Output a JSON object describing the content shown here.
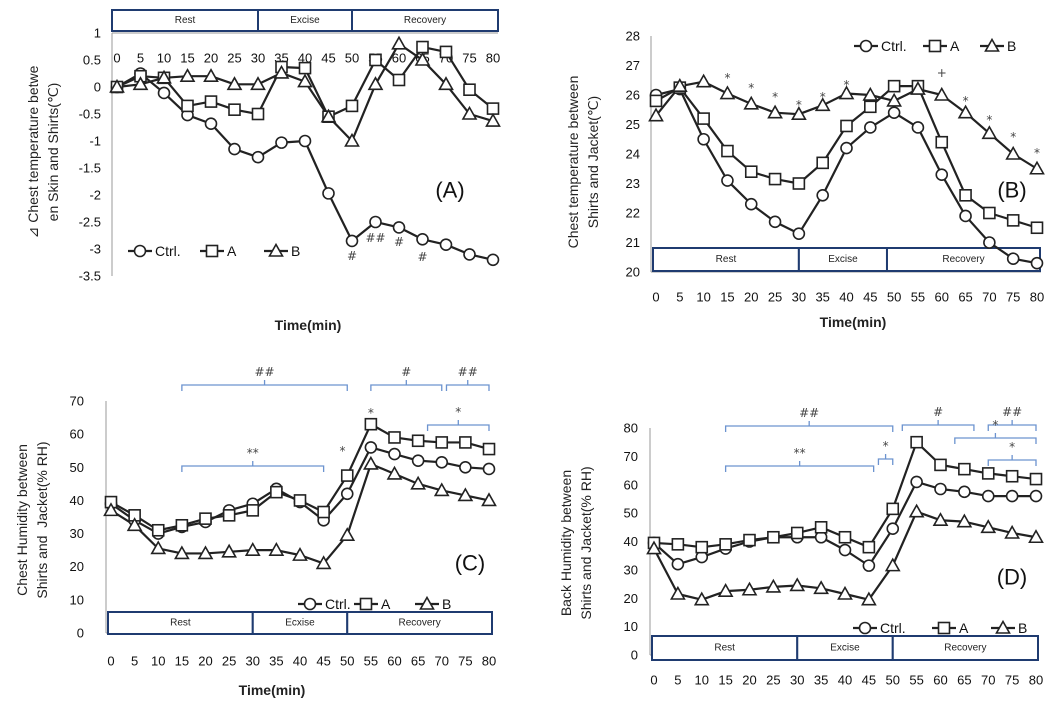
{
  "chart_data": [
    {
      "panel": "(A)",
      "type": "line",
      "x": [
        0,
        5,
        10,
        15,
        20,
        25,
        30,
        35,
        40,
        45,
        50,
        55,
        60,
        65,
        70,
        75,
        80
      ],
      "xlabel": "Time(min)",
      "ylabel": [
        "⊿ Chest temperature betwe",
        "en Skin and Shirts(℃)"
      ],
      "ylim": [
        -3.5,
        1
      ],
      "y_ticks": [
        1,
        0.5,
        0,
        -0.5,
        -1,
        -1.5,
        -2,
        -2.5,
        -3,
        -3.5
      ],
      "legend": "bottom-left",
      "phases": [
        {
          "label": "Rest",
          "start": 0,
          "end": 30
        },
        {
          "label": "Excise",
          "start": 30,
          "end": 50
        },
        {
          "label": "Recovery",
          "start": 50,
          "end": 80
        }
      ],
      "series": [
        {
          "name": "Ctrl.",
          "marker": "circle",
          "values": [
            0,
            0.25,
            -0.11,
            -0.52,
            -0.68,
            -1.15,
            -1.3,
            -1.03,
            -1.0,
            -1.97,
            -2.85,
            -2.5,
            -2.6,
            -2.82,
            -2.92,
            -3.1,
            -3.2
          ]
        },
        {
          "name": "A",
          "marker": "square",
          "values": [
            0,
            0.2,
            0.17,
            -0.35,
            -0.27,
            -0.42,
            -0.5,
            0.37,
            0.35,
            -0.55,
            -0.35,
            0.5,
            0.13,
            0.74,
            0.65,
            -0.05,
            -0.4
          ]
        },
        {
          "name": "B",
          "marker": "triangle",
          "values": [
            0,
            0.05,
            0.17,
            0.2,
            0.2,
            0.05,
            0.05,
            0.26,
            0.1,
            -0.55,
            -1.0,
            0.05,
            0.8,
            0.5,
            0.05,
            -0.5,
            -0.63
          ]
        }
      ],
      "annotations": [
        {
          "text": "#",
          "x": 50
        },
        {
          "text": "##",
          "x": 55
        },
        {
          "text": "#",
          "x": 60
        },
        {
          "text": "#",
          "x": 65
        }
      ]
    },
    {
      "panel": "(B)",
      "type": "line",
      "x": [
        0,
        5,
        10,
        15,
        20,
        25,
        30,
        35,
        40,
        45,
        50,
        55,
        60,
        65,
        70,
        75,
        80
      ],
      "xlabel": "Time(min)",
      "ylabel": [
        "Chest temperature between",
        "Shirts and Jacket(℃)"
      ],
      "ylim": [
        20,
        28
      ],
      "y_ticks": [
        28,
        27,
        26,
        25,
        24,
        23,
        22,
        21,
        20
      ],
      "legend": "top",
      "phases": [
        {
          "label": "Rest",
          "start": 0,
          "end": 30
        },
        {
          "label": "Excise",
          "start": 30,
          "end": 48.5
        },
        {
          "label": "Recovery",
          "start": 48.5,
          "end": 80
        }
      ],
      "series": [
        {
          "name": "Ctrl.",
          "marker": "circle",
          "values": [
            26.0,
            26.2,
            24.5,
            23.1,
            22.3,
            21.7,
            21.3,
            22.6,
            24.2,
            24.9,
            25.4,
            24.9,
            23.3,
            21.9,
            21.0,
            20.45,
            20.3
          ]
        },
        {
          "name": "A",
          "marker": "square",
          "values": [
            25.8,
            26.25,
            25.2,
            24.1,
            23.4,
            23.15,
            23.0,
            23.7,
            24.95,
            25.6,
            26.3,
            26.3,
            24.4,
            22.6,
            22.0,
            21.75,
            21.5
          ]
        },
        {
          "name": "B",
          "marker": "triangle",
          "values": [
            25.3,
            26.3,
            26.45,
            26.05,
            25.7,
            25.4,
            25.35,
            25.65,
            26.05,
            26.0,
            25.8,
            26.2,
            26.0,
            25.4,
            24.7,
            24.0,
            23.5
          ]
        }
      ],
      "annotations": [
        {
          "text": "*",
          "x": 15
        },
        {
          "text": "*",
          "x": 20
        },
        {
          "text": "*",
          "x": 25
        },
        {
          "text": "*",
          "x": 30
        },
        {
          "text": "*",
          "x": 35
        },
        {
          "text": "*",
          "x": 40
        },
        {
          "text": "+",
          "x": 60
        },
        {
          "text": "*",
          "x": 65
        },
        {
          "text": "*",
          "x": 70
        },
        {
          "text": "*",
          "x": 75
        },
        {
          "text": "*",
          "x": 80
        }
      ]
    },
    {
      "panel": "(C)",
      "type": "line",
      "x": [
        0,
        5,
        10,
        15,
        20,
        25,
        30,
        35,
        40,
        45,
        50,
        55,
        60,
        65,
        70,
        75,
        80
      ],
      "xlabel": "Time(min)",
      "ylabel": [
        "Chest Humidity between",
        "Shirts and  Jacket(% RH)"
      ],
      "ylim": [
        0,
        70
      ],
      "y_ticks": [
        70,
        60,
        50,
        40,
        30,
        20,
        10,
        0
      ],
      "legend": "bottom-right",
      "phases": [
        {
          "label": "Rest",
          "start": 0,
          "end": 30
        },
        {
          "label": "Ecxise",
          "start": 30,
          "end": 50
        },
        {
          "label": "Recovery",
          "start": 50,
          "end": 80
        }
      ],
      "series": [
        {
          "name": "Ctrl.",
          "marker": "circle",
          "values": [
            39,
            34,
            30,
            32,
            33.5,
            37,
            39,
            43.5,
            39.5,
            34,
            42,
            56,
            54,
            52,
            51.5,
            50,
            49.5
          ]
        },
        {
          "name": "A",
          "marker": "square",
          "values": [
            39.5,
            35.5,
            31,
            32.5,
            34.5,
            35.5,
            37,
            42.5,
            40,
            36.5,
            47.5,
            63,
            59,
            58,
            57.5,
            57.5,
            55.5
          ]
        },
        {
          "name": "B",
          "marker": "triangle",
          "values": [
            37,
            32.5,
            25.5,
            24,
            24,
            24.5,
            25,
            25,
            23.5,
            21,
            29.5,
            51,
            48,
            45,
            43,
            41.5,
            40
          ]
        }
      ],
      "annotations": [
        {
          "text": "##",
          "from": 15,
          "to": 50
        },
        {
          "text": "**",
          "from": 15,
          "to": 45
        },
        {
          "text": "*",
          "x": 49
        },
        {
          "text": "*",
          "x": 55
        },
        {
          "text": "#",
          "from": 55,
          "to": 70
        },
        {
          "text": "##",
          "from": 71,
          "to": 80
        },
        {
          "text": "*",
          "from": 67,
          "to": 80
        }
      ]
    },
    {
      "panel": "(D)",
      "type": "line",
      "x": [
        0,
        5,
        10,
        15,
        20,
        25,
        30,
        35,
        40,
        45,
        50,
        55,
        60,
        65,
        70,
        75,
        80
      ],
      "ylabel": [
        "Back Humidity between",
        "Shirts and Jacket(% RH)"
      ],
      "ylim": [
        0,
        80
      ],
      "y_ticks": [
        80,
        70,
        60,
        50,
        40,
        30,
        20,
        10,
        0
      ],
      "legend": "bottom-right",
      "phases": [
        {
          "label": "Rest",
          "start": 0,
          "end": 30
        },
        {
          "label": "Excise",
          "start": 30,
          "end": 50
        },
        {
          "label": "Recovery",
          "start": 50,
          "end": 80
        }
      ],
      "series": [
        {
          "name": "Ctrl.",
          "marker": "circle",
          "values": [
            39.5,
            32,
            34.5,
            37.5,
            40,
            41.5,
            41.5,
            41.5,
            37,
            31.5,
            44.5,
            61,
            58.5,
            57.5,
            56,
            56,
            56
          ]
        },
        {
          "name": "A",
          "marker": "square",
          "values": [
            39.5,
            39,
            38,
            39,
            40.5,
            41.5,
            43,
            45,
            41.5,
            38,
            51.5,
            75,
            67,
            65.5,
            64,
            63,
            62
          ]
        },
        {
          "name": "B",
          "marker": "triangle",
          "values": [
            37.5,
            21.5,
            19.5,
            22.5,
            23,
            24,
            24.5,
            23.5,
            21.5,
            19.5,
            31.5,
            50.5,
            47.5,
            47,
            45,
            43,
            41.5
          ]
        }
      ],
      "annotations": [
        {
          "text": "##",
          "from": 15,
          "to": 50
        },
        {
          "text": "**",
          "from": 15,
          "to": 46
        },
        {
          "text": "*",
          "from": 47,
          "to": 50
        },
        {
          "text": "#",
          "from": 52,
          "to": 67
        },
        {
          "text": "##",
          "from": 70,
          "to": 80
        },
        {
          "text": "*",
          "from": 63,
          "to": 80
        },
        {
          "text": "*",
          "from": 70,
          "to": 80
        }
      ]
    }
  ]
}
